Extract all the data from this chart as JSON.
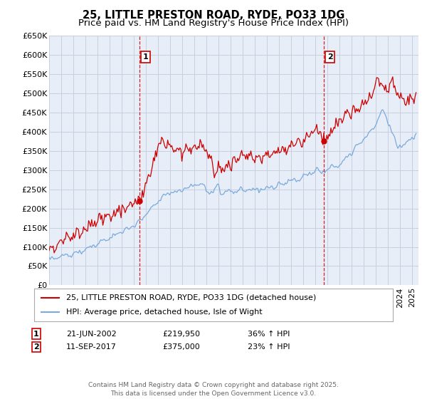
{
  "title_line1": "25, LITTLE PRESTON ROAD, RYDE, PO33 1DG",
  "title_line2": "Price paid vs. HM Land Registry's House Price Index (HPI)",
  "ylim": [
    0,
    650000
  ],
  "yticks": [
    0,
    50000,
    100000,
    150000,
    200000,
    250000,
    300000,
    350000,
    400000,
    450000,
    500000,
    550000,
    600000,
    650000
  ],
  "ytick_labels": [
    "£0",
    "£50K",
    "£100K",
    "£150K",
    "£200K",
    "£250K",
    "£300K",
    "£350K",
    "£400K",
    "£450K",
    "£500K",
    "£550K",
    "£600K",
    "£650K"
  ],
  "xlim_start": 1995.0,
  "xlim_end": 2025.5,
  "sale1_date": 2002.47,
  "sale1_price": 219950,
  "sale1_label": "1",
  "sale2_date": 2017.71,
  "sale2_price": 375000,
  "sale2_label": "2",
  "red_line_color": "#cc0000",
  "blue_line_color": "#7aaadd",
  "grid_color": "#c8d0e0",
  "background_color": "#e8eef8",
  "legend_label_red": "25, LITTLE PRESTON ROAD, RYDE, PO33 1DG (detached house)",
  "legend_label_blue": "HPI: Average price, detached house, Isle of Wight",
  "annotation1_date": "21-JUN-2002",
  "annotation1_price": "£219,950",
  "annotation1_hpi": "36% ↑ HPI",
  "annotation2_date": "11-SEP-2017",
  "annotation2_price": "£375,000",
  "annotation2_hpi": "23% ↑ HPI",
  "footer": "Contains HM Land Registry data © Crown copyright and database right 2025.\nThis data is licensed under the Open Government Licence v3.0.",
  "title_fontsize": 10.5,
  "subtitle_fontsize": 9.5,
  "tick_fontsize": 8,
  "legend_fontsize": 8,
  "annot_fontsize": 8
}
